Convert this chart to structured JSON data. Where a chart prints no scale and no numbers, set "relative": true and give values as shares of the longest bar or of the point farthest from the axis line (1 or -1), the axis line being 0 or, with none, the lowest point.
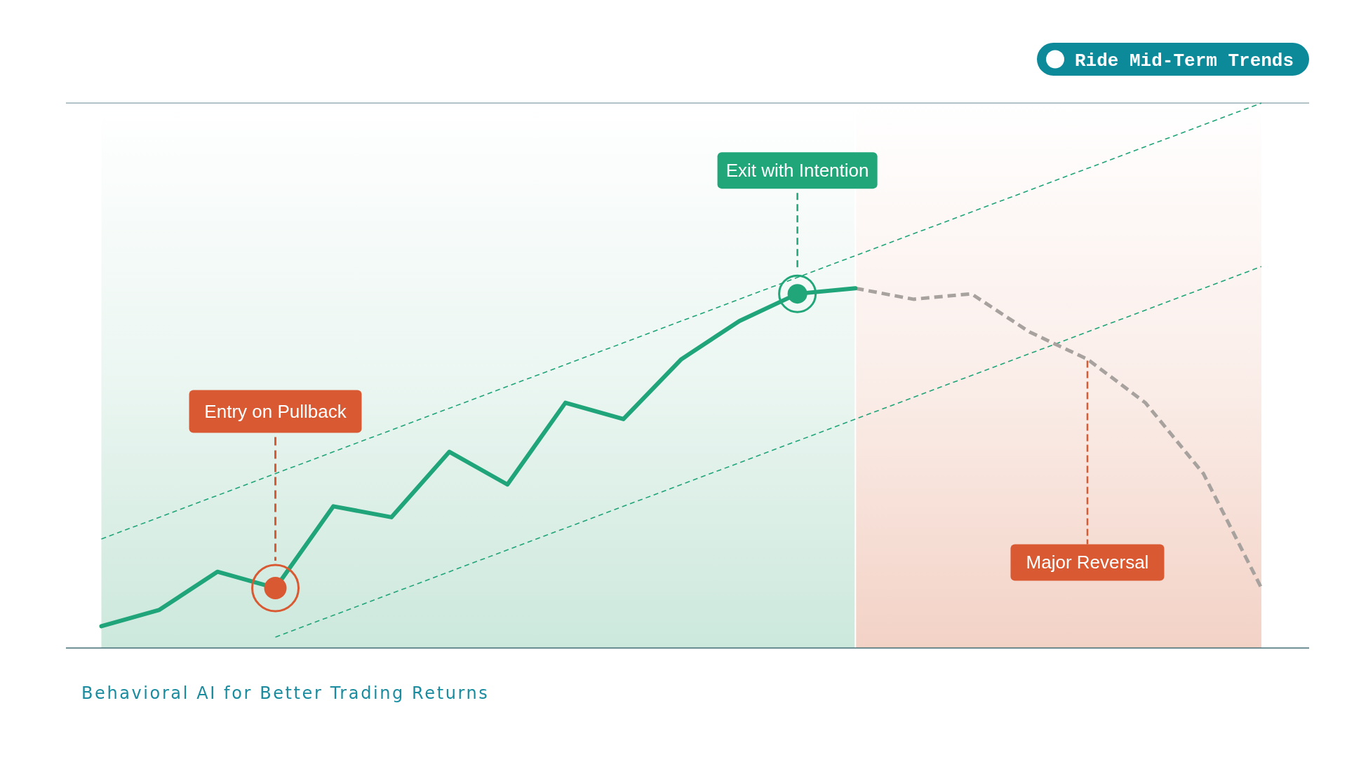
{
  "chart_data": {
    "type": "line",
    "title": "Ride Mid-Term Trends",
    "subtitle": "Behavioral AI for Better Trading Returns",
    "relative": true,
    "categories": [
      null,
      null,
      null,
      null,
      null,
      null,
      null,
      null,
      null,
      null,
      null,
      null,
      null,
      null,
      null,
      null,
      null,
      null,
      null,
      null,
      null
    ],
    "series": [
      {
        "color": "#20a479",
        "line_style": "solid",
        "values": [
          0.04,
          0.07,
          0.14,
          0.11,
          0.26,
          0.24,
          0.36,
          0.3,
          0.45,
          0.42,
          0.53,
          0.6,
          0.65,
          0.66,
          null,
          null,
          null,
          null,
          null,
          null,
          null
        ]
      },
      {
        "color": "#a8a29f",
        "line_style": "dashed",
        "values": [
          null,
          null,
          null,
          null,
          null,
          null,
          null,
          null,
          null,
          null,
          null,
          null,
          null,
          0.66,
          0.64,
          0.65,
          0.58,
          0.53,
          0.45,
          0.32,
          0.11
        ]
      },
      {
        "color": "#20a479",
        "line_style": "dashed",
        "values": [
          0.2,
          0.24,
          0.28,
          0.32,
          0.36,
          0.4,
          0.44,
          0.48,
          0.52,
          0.56,
          0.6,
          0.64,
          0.68,
          0.72,
          0.76,
          0.8,
          0.84,
          0.88,
          0.92,
          0.96,
          1.0
        ]
      },
      {
        "color": "#20a479",
        "line_style": "dashed",
        "values": [
          null,
          null,
          null,
          0.02,
          0.06,
          0.1,
          0.14,
          0.18,
          0.22,
          0.26,
          0.3,
          0.34,
          0.38,
          0.42,
          0.46,
          0.5,
          0.54,
          0.58,
          0.62,
          0.66,
          0.7
        ]
      }
    ],
    "annotations": [
      "Entry on Pullback",
      "Exit with Intention",
      "Major Reversal"
    ]
  }
}
